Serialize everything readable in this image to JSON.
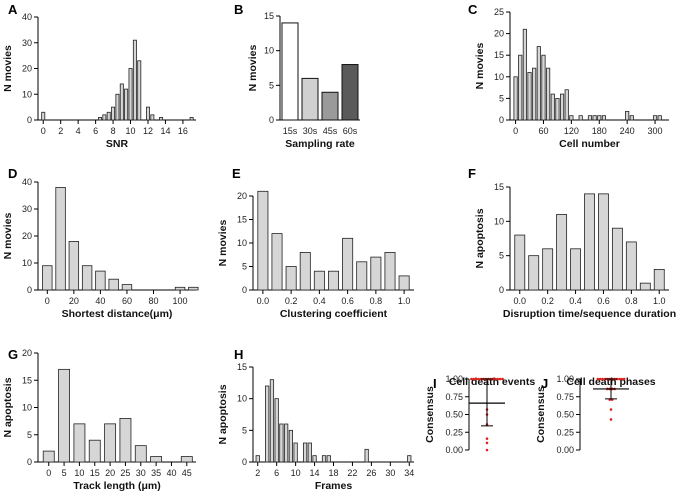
{
  "chart_data": [
    {
      "id": "A",
      "type": "bar",
      "panel_label": "A",
      "xlabel": "SNR",
      "ylabel": "N movies",
      "ylim": [
        0,
        40
      ],
      "yticks": [
        0,
        10,
        20,
        30,
        40
      ],
      "xlim": [
        -0.6,
        17.5
      ],
      "xticks": [
        0,
        2,
        4,
        6,
        8,
        10,
        12,
        14,
        16
      ],
      "bin_width": 0.5,
      "bar_color": "#d6d6d6",
      "x": [
        0,
        6,
        6.5,
        7,
        7.5,
        8,
        8.5,
        9,
        9.5,
        10,
        10.5,
        11,
        11.5,
        12,
        12.5,
        13,
        13.5,
        14,
        17
      ],
      "values": [
        3,
        0,
        1,
        2,
        3,
        5,
        10,
        14,
        12,
        20,
        31,
        23,
        0,
        5,
        2,
        0,
        1,
        0,
        1
      ]
    },
    {
      "id": "B",
      "type": "bar",
      "panel_label": "B",
      "xlabel": "Sampling rate",
      "ylabel": "N movies",
      "ylim": [
        0,
        15
      ],
      "yticks": [
        0,
        5,
        10,
        15
      ],
      "categories": [
        "15s",
        "30s",
        "45s",
        "60s"
      ],
      "values": [
        14,
        6,
        4,
        8
      ],
      "colors": [
        "#ffffff",
        "#d0d0d0",
        "#9a9a9a",
        "#5a5a5a"
      ]
    },
    {
      "id": "C",
      "type": "bar",
      "panel_label": "C",
      "xlabel": "Cell number",
      "ylabel": "N movies",
      "ylim": [
        0,
        25
      ],
      "yticks": [
        0,
        5,
        10,
        15,
        20,
        25
      ],
      "xlim": [
        -12,
        330
      ],
      "xticks": [
        0,
        60,
        120,
        180,
        240,
        300
      ],
      "bin_width": 10,
      "bar_color": "#d6d6d6",
      "x": [
        0,
        10,
        20,
        30,
        40,
        50,
        60,
        70,
        80,
        90,
        100,
        110,
        120,
        130,
        140,
        150,
        160,
        170,
        180,
        190,
        240,
        250,
        300,
        310
      ],
      "values": [
        10,
        15,
        21,
        11,
        12,
        17,
        15,
        12,
        6,
        5,
        6,
        7,
        1,
        0,
        1,
        0,
        1,
        1,
        1,
        1,
        2,
        1,
        1,
        1
      ]
    },
    {
      "id": "D",
      "type": "bar",
      "panel_label": "D",
      "xlabel": "Shortest distance(μm)",
      "ylabel": "N movies",
      "ylim": [
        0,
        40
      ],
      "yticks": [
        0,
        10,
        20,
        30,
        40
      ],
      "xlim": [
        -7,
        112
      ],
      "xticks": [
        0,
        20,
        40,
        60,
        80,
        100
      ],
      "bin_width": 10,
      "bar_color": "#d6d6d6",
      "x": [
        0,
        10,
        20,
        30,
        40,
        50,
        60,
        100,
        110
      ],
      "values": [
        9,
        38,
        18,
        9,
        7,
        4,
        2,
        1,
        1
      ]
    },
    {
      "id": "E",
      "type": "bar",
      "panel_label": "E",
      "xlabel": "Clustering coefficient",
      "ylabel": "N movies",
      "ylim": [
        0,
        20
      ],
      "yticks": [
        0,
        5,
        10,
        15,
        20
      ],
      "xlim": [
        -0.07,
        1.07
      ],
      "xticks": [
        0.0,
        0.2,
        0.4,
        0.6,
        0.8,
        1.0
      ],
      "tick_labels": [
        "0.0",
        "0.2",
        "0.4",
        "0.6",
        "0.8",
        "1.0"
      ],
      "bin_width": 0.1,
      "bar_color": "#d6d6d6",
      "x": [
        0.0,
        0.1,
        0.2,
        0.3,
        0.4,
        0.5,
        0.6,
        0.7,
        0.8,
        0.9,
        1.0
      ],
      "values": [
        21,
        12,
        5,
        8,
        4,
        4,
        11,
        6,
        7,
        8,
        3
      ]
    },
    {
      "id": "F",
      "type": "bar",
      "panel_label": "F",
      "xlabel": "Disruption time/sequence duration",
      "ylabel": "N apoptosis",
      "ylim": [
        0,
        15
      ],
      "yticks": [
        0,
        5,
        10,
        15
      ],
      "xlim": [
        -0.07,
        1.07
      ],
      "xticks": [
        0.0,
        0.2,
        0.4,
        0.6,
        0.8,
        1.0
      ],
      "tick_labels": [
        "0.0",
        "0.2",
        "0.4",
        "0.6",
        "0.8",
        "1.0"
      ],
      "bin_width": 0.1,
      "bar_color": "#d6d6d6",
      "x": [
        0.0,
        0.1,
        0.2,
        0.3,
        0.4,
        0.5,
        0.6,
        0.7,
        0.8,
        0.9,
        1.0
      ],
      "values": [
        8,
        5,
        6,
        11,
        6,
        14,
        14,
        9,
        7,
        1,
        3
      ]
    },
    {
      "id": "G",
      "type": "bar",
      "panel_label": "G",
      "xlabel": "Track length (μm)",
      "ylabel": "N apoptosis",
      "ylim": [
        0,
        20
      ],
      "yticks": [
        0,
        5,
        10,
        15,
        20
      ],
      "xlim": [
        -3.5,
        48
      ],
      "xticks": [
        0,
        5,
        10,
        15,
        20,
        25,
        30,
        35,
        40,
        45
      ],
      "bin_width": 5,
      "bar_color": "#d6d6d6",
      "x": [
        0,
        5,
        10,
        15,
        20,
        25,
        30,
        35,
        45
      ],
      "values": [
        2,
        17,
        7,
        4,
        7,
        8,
        3,
        1,
        1
      ]
    },
    {
      "id": "H",
      "type": "bar",
      "panel_label": "H",
      "xlabel": "Frames",
      "ylabel": "N apoptosis",
      "ylim": [
        0,
        15
      ],
      "yticks": [
        0,
        5,
        10,
        15
      ],
      "xlim": [
        1,
        35
      ],
      "xticks": [
        2,
        6,
        10,
        14,
        18,
        22,
        26,
        30,
        34
      ],
      "bin_width": 1,
      "bar_color": "#d6d6d6",
      "x": [
        2,
        4,
        5,
        6,
        7,
        8,
        9,
        10,
        12,
        13,
        14,
        16,
        17,
        25,
        34
      ],
      "values": [
        1,
        12,
        13,
        10,
        6,
        6,
        5,
        3,
        3,
        3,
        1,
        1,
        1,
        2,
        1
      ]
    },
    {
      "id": "I",
      "type": "scatter",
      "panel_label": "I",
      "title": "Cell death events",
      "ylabel": "Consensus",
      "ylim": [
        0,
        1
      ],
      "yticks": [
        0.0,
        0.25,
        0.5,
        0.75,
        1.0
      ],
      "tick_labels": [
        "0.00",
        "0.25",
        "0.50",
        "0.75",
        "1.00"
      ],
      "mean": 0.66,
      "sd_upper": 1.0,
      "sd_lower": 0.34,
      "points": [
        1.0,
        1.0,
        1.0,
        1.0,
        1.0,
        1.0,
        1.0,
        1.0,
        1.0,
        1.0,
        1.0,
        1.0,
        1.0,
        1.0,
        0.57,
        0.5,
        0.36,
        0.16,
        0.1,
        0.0
      ]
    },
    {
      "id": "J",
      "type": "scatter",
      "panel_label": "J",
      "title": "Cell death phases",
      "ylabel": "Consensus",
      "ylim": [
        0,
        1
      ],
      "yticks": [
        0.0,
        0.25,
        0.5,
        0.75,
        1.0
      ],
      "tick_labels": [
        "0.00",
        "0.25",
        "0.50",
        "0.75",
        "1.00"
      ],
      "mean": 0.86,
      "sd_upper": 1.0,
      "sd_lower": 0.72,
      "points": [
        1.0,
        1.0,
        1.0,
        1.0,
        1.0,
        1.0,
        1.0,
        1.0,
        1.0,
        1.0,
        1.0,
        1.0,
        0.86,
        0.86,
        0.86,
        0.86,
        0.71,
        0.71,
        0.57,
        0.43
      ]
    }
  ]
}
